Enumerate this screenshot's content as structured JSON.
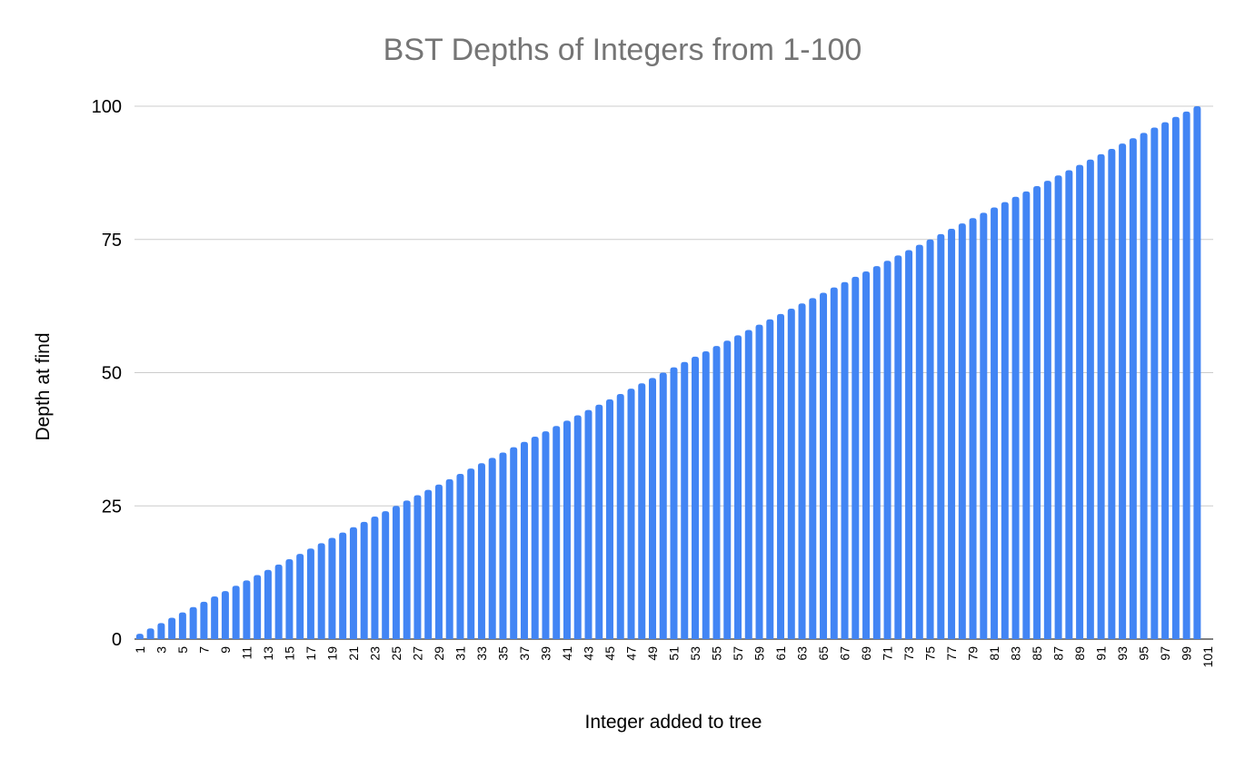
{
  "chart_data": {
    "type": "bar",
    "title": "BST Depths of Integers from 1-100",
    "xlabel": "Integer added to tree",
    "ylabel": "Depth at find",
    "categories": [
      1,
      2,
      3,
      4,
      5,
      6,
      7,
      8,
      9,
      10,
      11,
      12,
      13,
      14,
      15,
      16,
      17,
      18,
      19,
      20,
      21,
      22,
      23,
      24,
      25,
      26,
      27,
      28,
      29,
      30,
      31,
      32,
      33,
      34,
      35,
      36,
      37,
      38,
      39,
      40,
      41,
      42,
      43,
      44,
      45,
      46,
      47,
      48,
      49,
      50,
      51,
      52,
      53,
      54,
      55,
      56,
      57,
      58,
      59,
      60,
      61,
      62,
      63,
      64,
      65,
      66,
      67,
      68,
      69,
      70,
      71,
      72,
      73,
      74,
      75,
      76,
      77,
      78,
      79,
      80,
      81,
      82,
      83,
      84,
      85,
      86,
      87,
      88,
      89,
      90,
      91,
      92,
      93,
      94,
      95,
      96,
      97,
      98,
      99,
      100,
      101
    ],
    "x_tick_labels": [
      "1",
      "3",
      "5",
      "7",
      "9",
      "11",
      "13",
      "15",
      "17",
      "19",
      "21",
      "23",
      "25",
      "27",
      "29",
      "31",
      "33",
      "35",
      "37",
      "39",
      "41",
      "43",
      "45",
      "47",
      "49",
      "51",
      "53",
      "55",
      "57",
      "59",
      "61",
      "63",
      "65",
      "67",
      "69",
      "71",
      "73",
      "75",
      "77",
      "79",
      "81",
      "83",
      "85",
      "87",
      "89",
      "91",
      "93",
      "95",
      "97",
      "99",
      "101"
    ],
    "values": [
      1,
      2,
      3,
      4,
      5,
      6,
      7,
      8,
      9,
      10,
      11,
      12,
      13,
      14,
      15,
      16,
      17,
      18,
      19,
      20,
      21,
      22,
      23,
      24,
      25,
      26,
      27,
      28,
      29,
      30,
      31,
      32,
      33,
      34,
      35,
      36,
      37,
      38,
      39,
      40,
      41,
      42,
      43,
      44,
      45,
      46,
      47,
      48,
      49,
      50,
      51,
      52,
      53,
      54,
      55,
      56,
      57,
      58,
      59,
      60,
      61,
      62,
      63,
      64,
      65,
      66,
      67,
      68,
      69,
      70,
      71,
      72,
      73,
      74,
      75,
      76,
      77,
      78,
      79,
      80,
      81,
      82,
      83,
      84,
      85,
      86,
      87,
      88,
      89,
      90,
      91,
      92,
      93,
      94,
      95,
      96,
      97,
      98,
      99,
      100,
      0
    ],
    "ylim": [
      0,
      100
    ],
    "y_ticks": [
      0,
      25,
      50,
      75,
      100
    ],
    "grid": true,
    "legend": "none",
    "bar_color": "#4285f4"
  }
}
